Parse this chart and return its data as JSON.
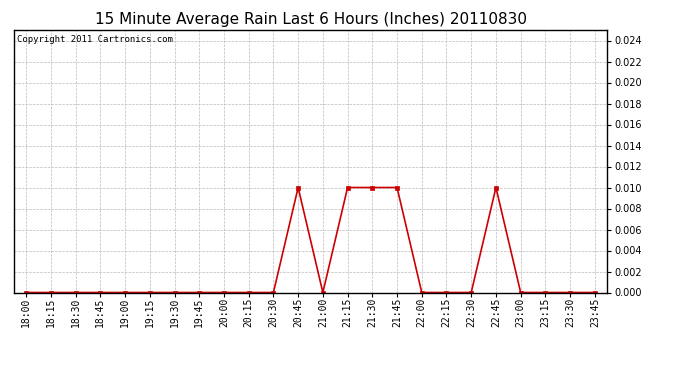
{
  "title": "15 Minute Average Rain Last 6 Hours (Inches) 20110830",
  "copyright_text": "Copyright 2011 Cartronics.com",
  "line_color": "#cc0000",
  "marker_color": "#cc0000",
  "bg_color": "#ffffff",
  "plot_bg_color": "#ffffff",
  "grid_color": "#bbbbbb",
  "ylim": [
    0.0,
    0.025
  ],
  "yticks": [
    0.0,
    0.002,
    0.004,
    0.006,
    0.008,
    0.01,
    0.012,
    0.014,
    0.016,
    0.018,
    0.02,
    0.022,
    0.024
  ],
  "x_labels": [
    "18:00",
    "18:15",
    "18:30",
    "18:45",
    "19:00",
    "19:15",
    "19:30",
    "19:45",
    "20:00",
    "20:15",
    "20:30",
    "20:45",
    "21:00",
    "21:15",
    "21:30",
    "21:45",
    "22:00",
    "22:15",
    "22:30",
    "22:45",
    "23:00",
    "23:15",
    "23:30",
    "23:45"
  ],
  "y_values": [
    0.0,
    0.0,
    0.0,
    0.0,
    0.0,
    0.0,
    0.0,
    0.0,
    0.0,
    0.0,
    0.0,
    0.01,
    0.0,
    0.01,
    0.01,
    0.01,
    0.0,
    0.0,
    0.0,
    0.01,
    0.0,
    0.0,
    0.0,
    0.0
  ],
  "title_fontsize": 11,
  "tick_fontsize": 7,
  "copyright_fontsize": 6.5,
  "linewidth": 1.2,
  "markersize": 2.5
}
